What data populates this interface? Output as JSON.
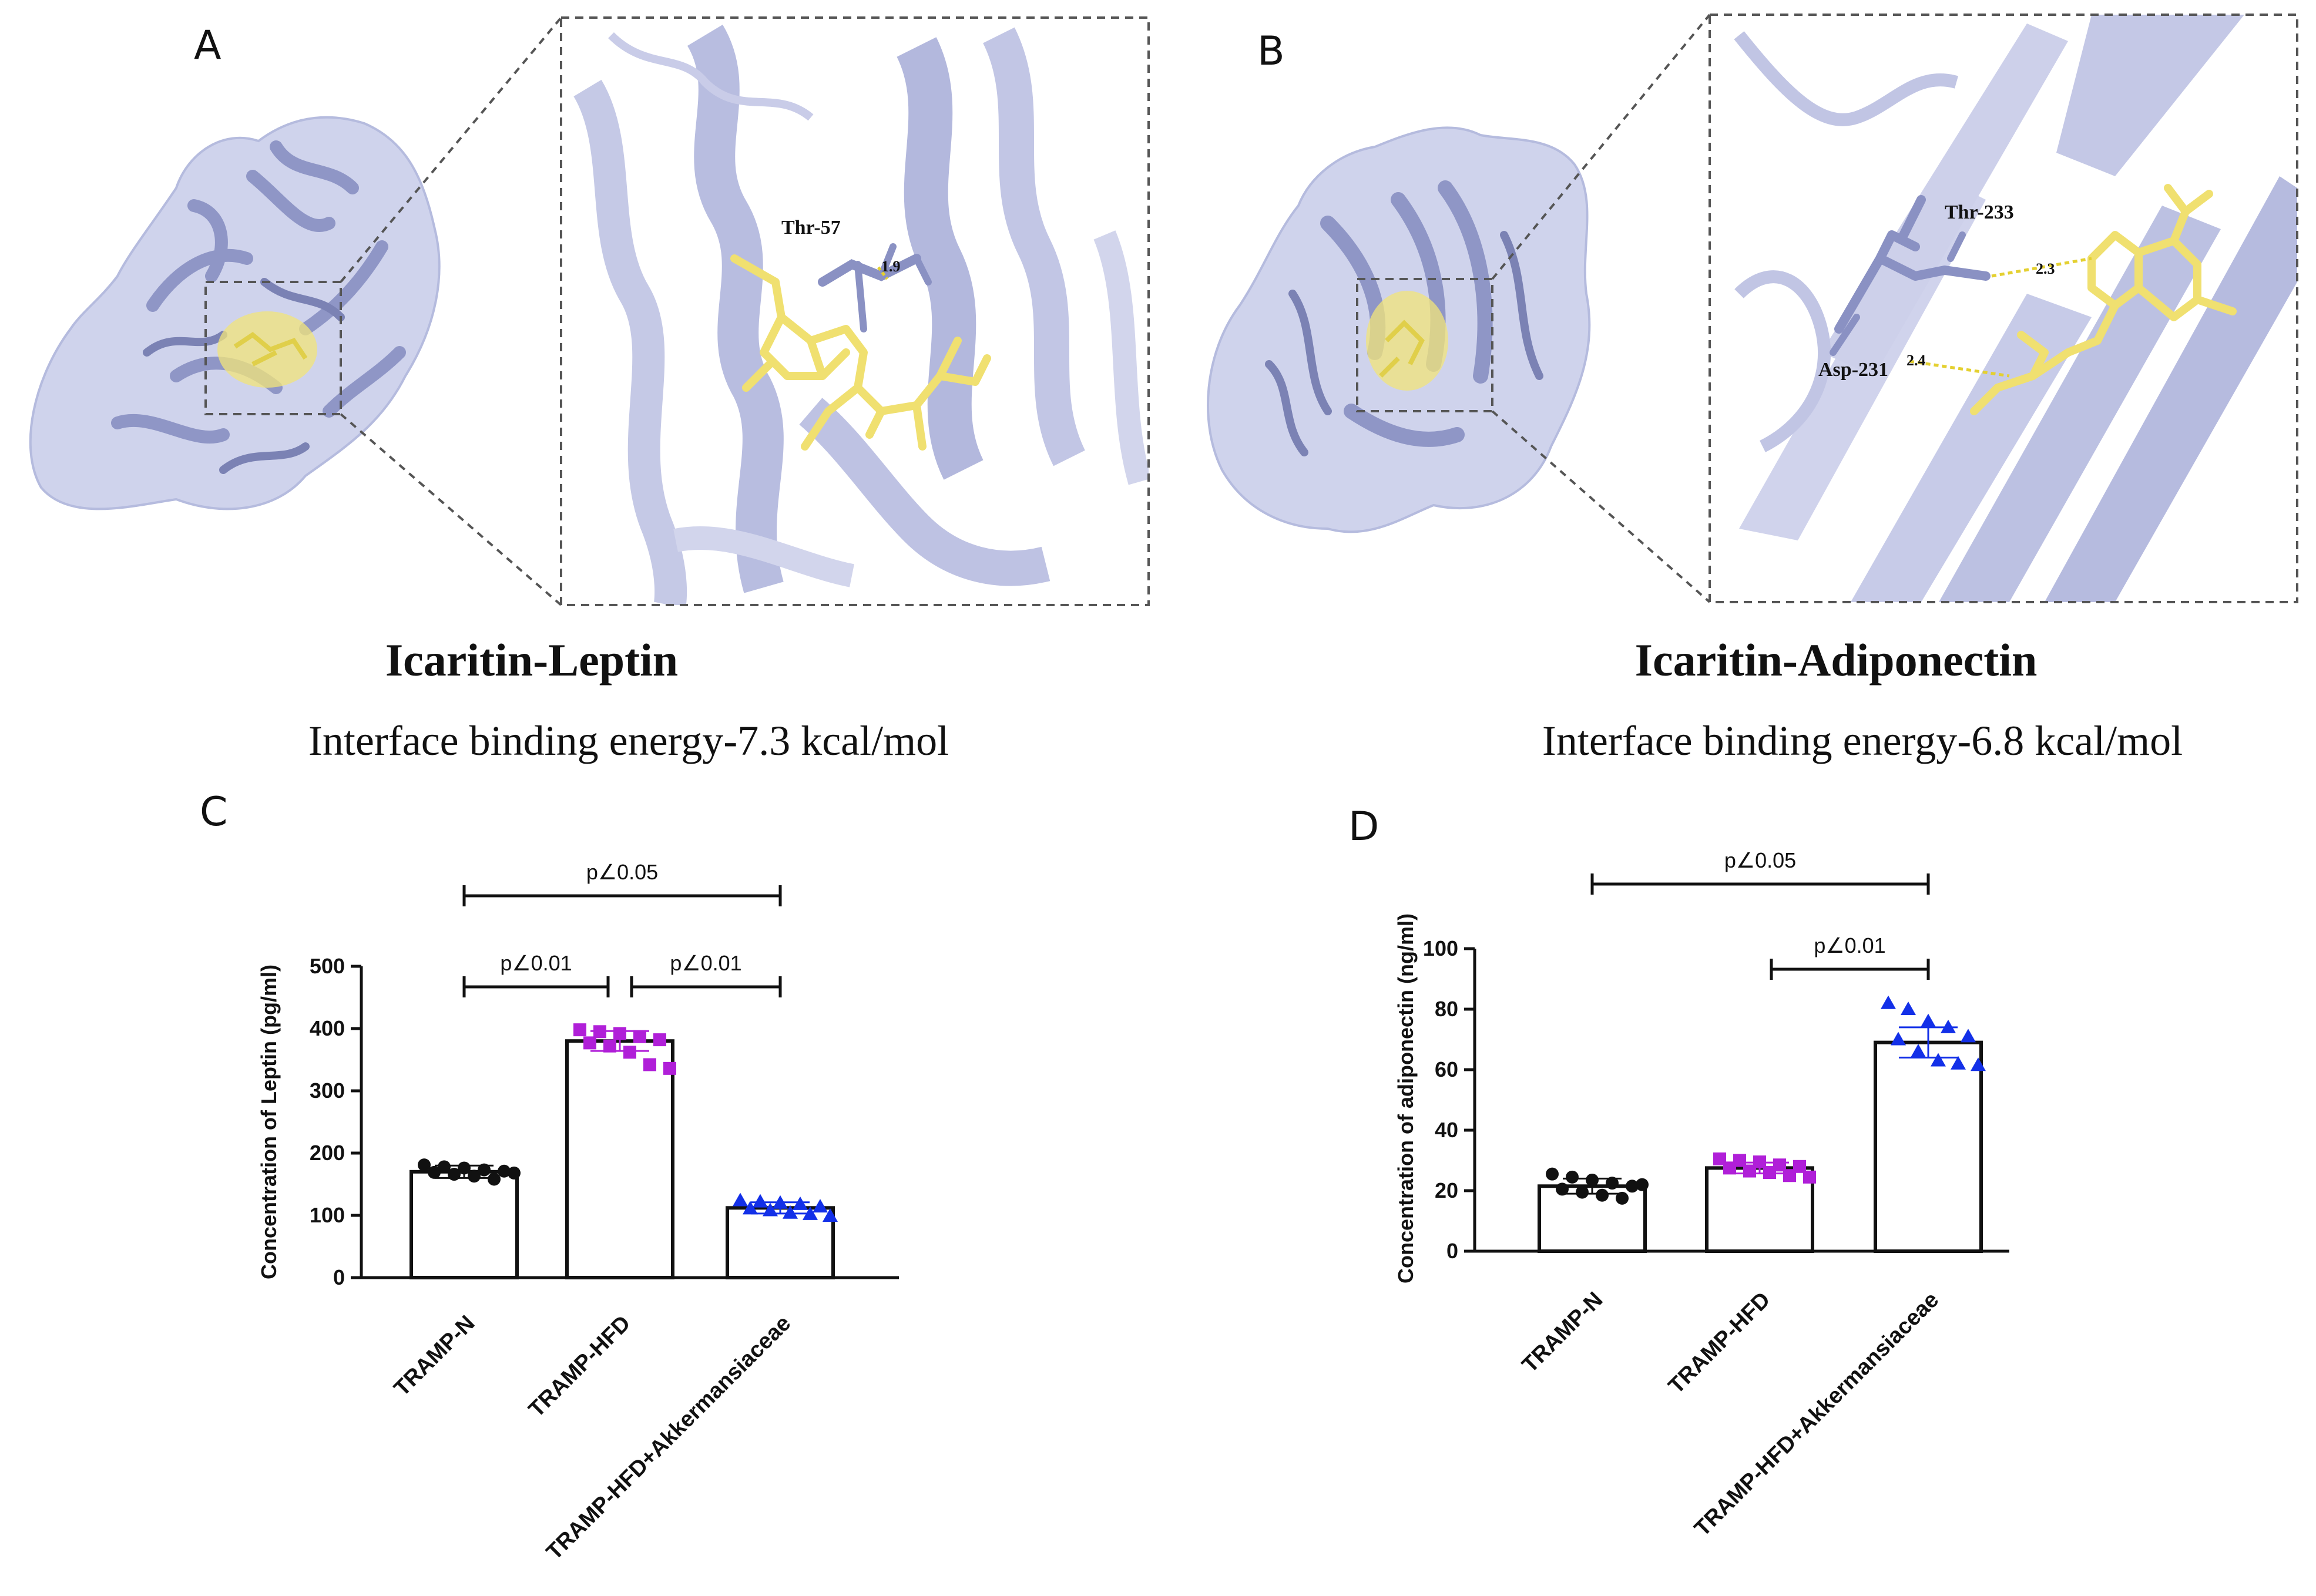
{
  "panels": {
    "A": {
      "letter": "A",
      "residue_label": "Thr-57",
      "distance_label": "1.9",
      "title": "Icaritin-Leptin",
      "subtitle": "Interface binding energy-7.3 kcal/mol"
    },
    "B": {
      "letter": "B",
      "residue_labels": [
        "Thr-233",
        "Asp-231"
      ],
      "distance_labels": [
        "2.3",
        "2.4"
      ],
      "title": "Icaritin-Adiponectin",
      "subtitle": "Interface binding energy-6.8 kcal/mol"
    },
    "C": {
      "letter": "C"
    },
    "D": {
      "letter": "D"
    }
  },
  "colors": {
    "protein": "#a9aed6",
    "protein_dark": "#7b82b4",
    "ligand": "#f2e47a",
    "group1": "#111111",
    "group2": "#b01fd8",
    "group3": "#1330e8"
  },
  "chart_data": [
    {
      "panel": "C",
      "type": "bar",
      "categories": [
        "TRAMP-N",
        "TRAMP-HFD",
        "TRAMP-HFD+Akkermansiaceae"
      ],
      "values": [
        170,
        380,
        112
      ],
      "errors": [
        10,
        16,
        9
      ],
      "points": [
        [
          181,
          178,
          176,
          173,
          171,
          169,
          166,
          163,
          158,
          168
        ],
        [
          398,
          395,
          392,
          387,
          382,
          377,
          372,
          362,
          342,
          336
        ],
        [
          124,
          122,
          120,
          118,
          114,
          111,
          108,
          104,
          102,
          99
        ]
      ],
      "markers": [
        "circle",
        "square",
        "triangle"
      ],
      "ylabel": "Concentration of Leptin (pg/ml)",
      "ylim": [
        0,
        500
      ],
      "yticks": [
        0,
        100,
        200,
        300,
        400,
        500
      ],
      "significance": [
        {
          "from": 0,
          "to": 1,
          "label": "p∠0.01"
        },
        {
          "from": 1,
          "to": 2,
          "label": "p∠0.01"
        },
        {
          "from": 0,
          "to": 2,
          "label": "p∠0.05"
        }
      ]
    },
    {
      "panel": "D",
      "type": "bar",
      "categories": [
        "TRAMP-N",
        "TRAMP-HFD",
        "TRAMP-HFD+Akkermansiaceae"
      ],
      "values": [
        21.5,
        27.5,
        69
      ],
      "errors": [
        2.5,
        1.8,
        5
      ],
      "points": [
        [
          25.5,
          24.5,
          23.5,
          22.5,
          21.5,
          20.5,
          19.5,
          18.5,
          17.5,
          22
        ],
        [
          30.5,
          30,
          29.5,
          28.5,
          28,
          27.5,
          26.5,
          26,
          25,
          24.5
        ],
        [
          82,
          80,
          76,
          74,
          71,
          70,
          66,
          63,
          62,
          61.5
        ]
      ],
      "markers": [
        "circle",
        "square",
        "triangle"
      ],
      "ylabel": "Concentration of adiponectin (ng/ml)",
      "ylim": [
        0,
        100
      ],
      "yticks": [
        0,
        20,
        40,
        60,
        80,
        100
      ],
      "significance": [
        {
          "from": 1,
          "to": 2,
          "label": "p∠0.01"
        },
        {
          "from": 0,
          "to": 2,
          "label": "p∠0.05"
        }
      ]
    }
  ]
}
